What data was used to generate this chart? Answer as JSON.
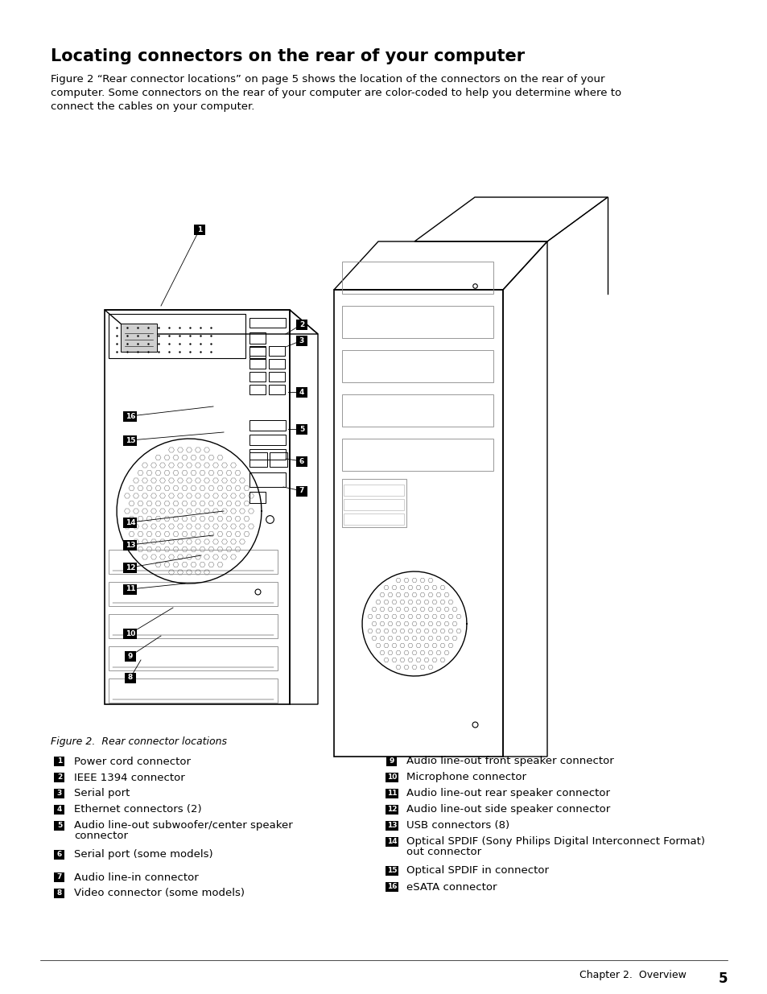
{
  "title": "Locating connectors on the rear of your computer",
  "intro_text": "Figure 2 “Rear connector locations” on page 5 shows the location of the connectors on the rear of your\ncomputer. Some connectors on the rear of your computer are color-coded to help you determine where to\nconnect the cables on your computer.",
  "figure_caption": "Figure 2.  Rear connector locations",
  "background_color": "#ffffff",
  "left_items": [
    {
      "num": "1",
      "text": "Power cord connector"
    },
    {
      "num": "2",
      "text": "IEEE 1394 connector"
    },
    {
      "num": "3",
      "text": "Serial port"
    },
    {
      "num": "4",
      "text": "Ethernet connectors (2)"
    },
    {
      "num": "5",
      "text": "Audio line-out subwoofer/center speaker\nconnector"
    },
    {
      "num": "6",
      "text": "Serial port (some models)"
    },
    {
      "num": "7",
      "text": "Audio line-in connector"
    },
    {
      "num": "8",
      "text": "Video connector (some models)"
    }
  ],
  "right_items": [
    {
      "num": "9",
      "text": "Audio line-out front speaker connector"
    },
    {
      "num": "10",
      "text": "Microphone connector"
    },
    {
      "num": "11",
      "text": "Audio line-out rear speaker connector"
    },
    {
      "num": "12",
      "text": "Audio line-out side speaker connector"
    },
    {
      "num": "13",
      "text": "USB connectors (8)"
    },
    {
      "num": "14",
      "text": "Optical SPDIF (Sony Philips Digital Interconnect Format)\nout connector"
    },
    {
      "num": "15",
      "text": "Optical SPDIF in connector"
    },
    {
      "num": "16",
      "text": "eSATA connector"
    }
  ],
  "footer_text": "Chapter 2.  Overview",
  "footer_page": "5"
}
